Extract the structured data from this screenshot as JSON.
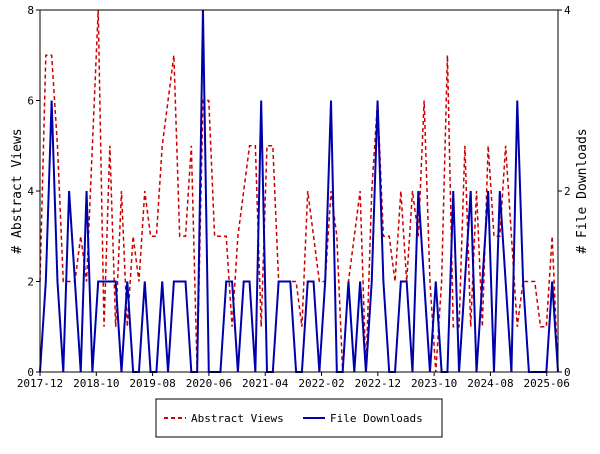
{
  "chart_data": {
    "type": "line",
    "title": "",
    "ylabel_left": "# Abstract Views",
    "ylabel_right": "# File Downloads",
    "ylim_left": [
      0,
      8
    ],
    "ylim_right": [
      0,
      4
    ],
    "yticks_left": [
      "0",
      "2",
      "4",
      "6",
      "8"
    ],
    "yticks_right": [
      "0",
      "2",
      "4"
    ],
    "x_start": "2017-12",
    "x_end": "2025-08",
    "xtick_labels": [
      "2017-12",
      "2018-10",
      "2019-08",
      "2020-06",
      "2021-04",
      "2022-02",
      "2022-12",
      "2023-10",
      "2024-08",
      "2025-06"
    ],
    "legend_position": "bottom",
    "grid": false,
    "series": [
      {
        "name": "Abstract Views",
        "axis": "left",
        "color": "#cc0000",
        "dash": true,
        "values": [
          2,
          7,
          7,
          5,
          2,
          2,
          2,
          3,
          2,
          5,
          8,
          1,
          5,
          1,
          4,
          1,
          3,
          2,
          4,
          3,
          3,
          5,
          6,
          7,
          3,
          3,
          5,
          0,
          6,
          6,
          3,
          3,
          3,
          1,
          3,
          4,
          5,
          5,
          1,
          5,
          5,
          2,
          2,
          2,
          2,
          1,
          4,
          3,
          2,
          2,
          4,
          3,
          0,
          2,
          3,
          4,
          0,
          4,
          6,
          3,
          3,
          2,
          4,
          2,
          4,
          3,
          6,
          2,
          0,
          2,
          7,
          1,
          1,
          5,
          1,
          4,
          1,
          5,
          3,
          3,
          5,
          3,
          1,
          2,
          2,
          2,
          1,
          1,
          3,
          0
        ]
      },
      {
        "name": "File Downloads",
        "axis": "right",
        "color": "#0000aa",
        "dash": false,
        "values": [
          0,
          1,
          3,
          1,
          0,
          2,
          1,
          0,
          2,
          0,
          1,
          1,
          1,
          1,
          0,
          1,
          0,
          0,
          1,
          0,
          0,
          1,
          0,
          1,
          1,
          1,
          0,
          0,
          4,
          0,
          0,
          0,
          1,
          1,
          0,
          1,
          1,
          0,
          3,
          0,
          0,
          1,
          1,
          1,
          0,
          0,
          1,
          1,
          0,
          1,
          3,
          0,
          0,
          1,
          0,
          1,
          0,
          1,
          3,
          1,
          0,
          0,
          1,
          1,
          0,
          2,
          1,
          0,
          1,
          0,
          0,
          2,
          0,
          1,
          2,
          0,
          1,
          2,
          0,
          2,
          1,
          0,
          3,
          1,
          0,
          0,
          0,
          0,
          1,
          0
        ]
      }
    ]
  }
}
